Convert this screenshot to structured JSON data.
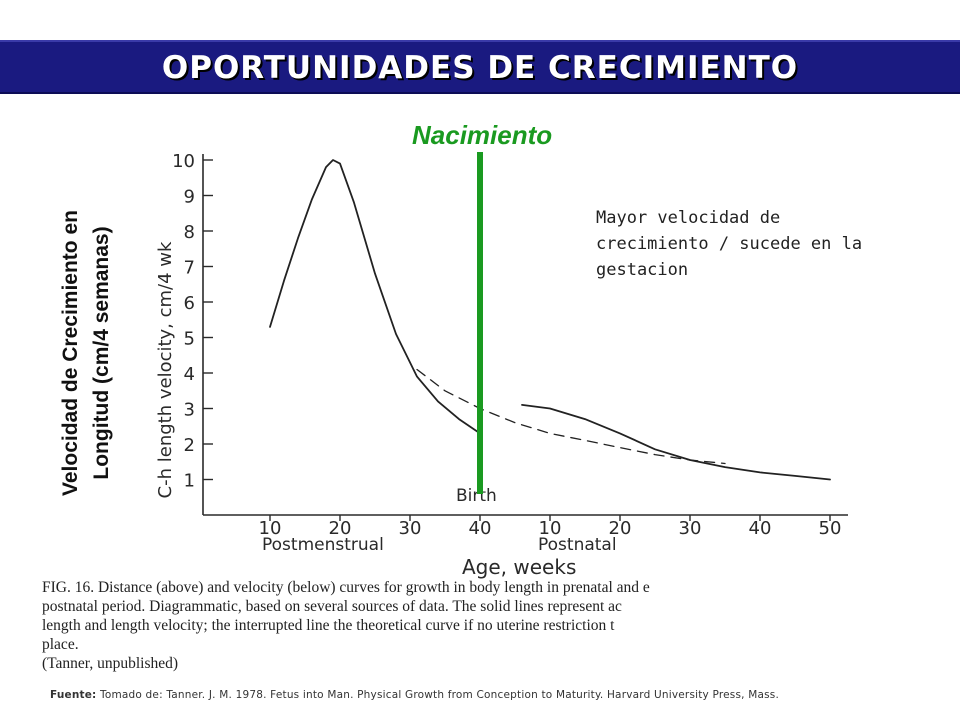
{
  "title": "OPORTUNIDADES DE CRECIMIENTO",
  "birth_heading": "Nacimiento",
  "note": "Mayor velocidad de crecimiento / sucede en la gestacion",
  "ylabel_es_line1": "Velocidad de Crecimiento en",
  "ylabel_es_line2": "Longitud (cm/4 semanas)",
  "caption_lines": [
    "FIG. 16. Distance (above) and velocity (below) curves for growth in body length in prenatal and e",
    "postnatal period. Diagrammatic, based on several sources of data. The solid lines represent ac",
    "length and length velocity; the interrupted line the theoretical curve if no uterine restriction t",
    "place.",
    "(Tanner, unpublished)"
  ],
  "source_label": "Fuente:",
  "source_text": "Tomado de: Tanner. J. M. 1978. Fetus into Man. Physical Growth from Conception to Maturity. Harvard University Press, Mass.",
  "colors": {
    "title_bg": "#1a1a80",
    "birth_line": "#1a9a20",
    "curve": "#222222"
  },
  "chart_data": {
    "type": "line",
    "ylabel": "C-h length velocity, cm/4 wk",
    "xlabel": "Age, weeks",
    "x_group_labels": [
      "Postmenstrual",
      "Postnatal"
    ],
    "birth_label": "Birth",
    "ylim": [
      0,
      10
    ],
    "yticks": [
      1,
      2,
      3,
      4,
      5,
      6,
      7,
      8,
      9,
      10
    ],
    "x_ticks_postmenstrual": [
      10,
      20,
      30,
      40
    ],
    "x_ticks_postnatal": [
      10,
      20,
      30,
      40,
      50
    ],
    "series": [
      {
        "style": "solid",
        "x": [
          10,
          12,
          14,
          16,
          18,
          19,
          20,
          22,
          25,
          28,
          31,
          34,
          37,
          40
        ],
        "y": [
          5.3,
          6.6,
          7.8,
          8.9,
          9.8,
          10.0,
          9.9,
          8.8,
          6.8,
          5.1,
          3.9,
          3.2,
          2.7,
          2.3
        ]
      },
      {
        "style": "dashed",
        "x": [
          31,
          35,
          40,
          45,
          50,
          55,
          60,
          65,
          70,
          75
        ],
        "y": [
          4.1,
          3.5,
          3.0,
          2.6,
          2.3,
          2.1,
          1.9,
          1.7,
          1.55,
          1.45
        ]
      },
      {
        "style": "solid",
        "x": [
          46,
          50,
          55,
          60,
          65,
          70,
          75,
          80,
          85,
          90
        ],
        "y": [
          3.1,
          3.0,
          2.7,
          2.3,
          1.85,
          1.55,
          1.35,
          1.2,
          1.1,
          1.0
        ]
      }
    ],
    "birth_x": 40
  }
}
